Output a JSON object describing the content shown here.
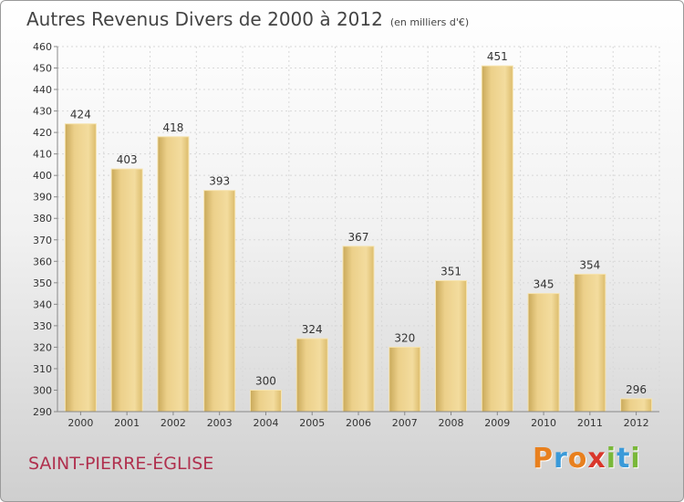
{
  "chart_data": {
    "type": "bar",
    "title": "Autres Revenus Divers de 2000 à 2012",
    "subtitle": "(en milliers d'€)",
    "categories": [
      "2000",
      "2001",
      "2002",
      "2003",
      "2004",
      "2005",
      "2006",
      "2007",
      "2008",
      "2009",
      "2010",
      "2011",
      "2012"
    ],
    "values": [
      424,
      403,
      418,
      393,
      300,
      324,
      367,
      320,
      351,
      451,
      345,
      354,
      296
    ],
    "ylim": [
      290,
      460
    ],
    "yticks": [
      290,
      300,
      310,
      320,
      330,
      340,
      350,
      360,
      370,
      380,
      390,
      400,
      410,
      420,
      430,
      440,
      450,
      460
    ],
    "grid": true,
    "bar_color": "#e8c877"
  },
  "town": "SAINT-PIERRE-ÉGLISE",
  "logo": {
    "letters": [
      {
        "ch": "P",
        "color": "#e8801e"
      },
      {
        "ch": "r",
        "color": "#3a9ad9"
      },
      {
        "ch": "o",
        "color": "#e8801e"
      },
      {
        "ch": "x",
        "color": "#d9362b"
      },
      {
        "ch": "i",
        "color": "#7ab83a"
      },
      {
        "ch": "t",
        "color": "#3a9ad9"
      },
      {
        "ch": "i",
        "color": "#7ab83a"
      }
    ]
  }
}
